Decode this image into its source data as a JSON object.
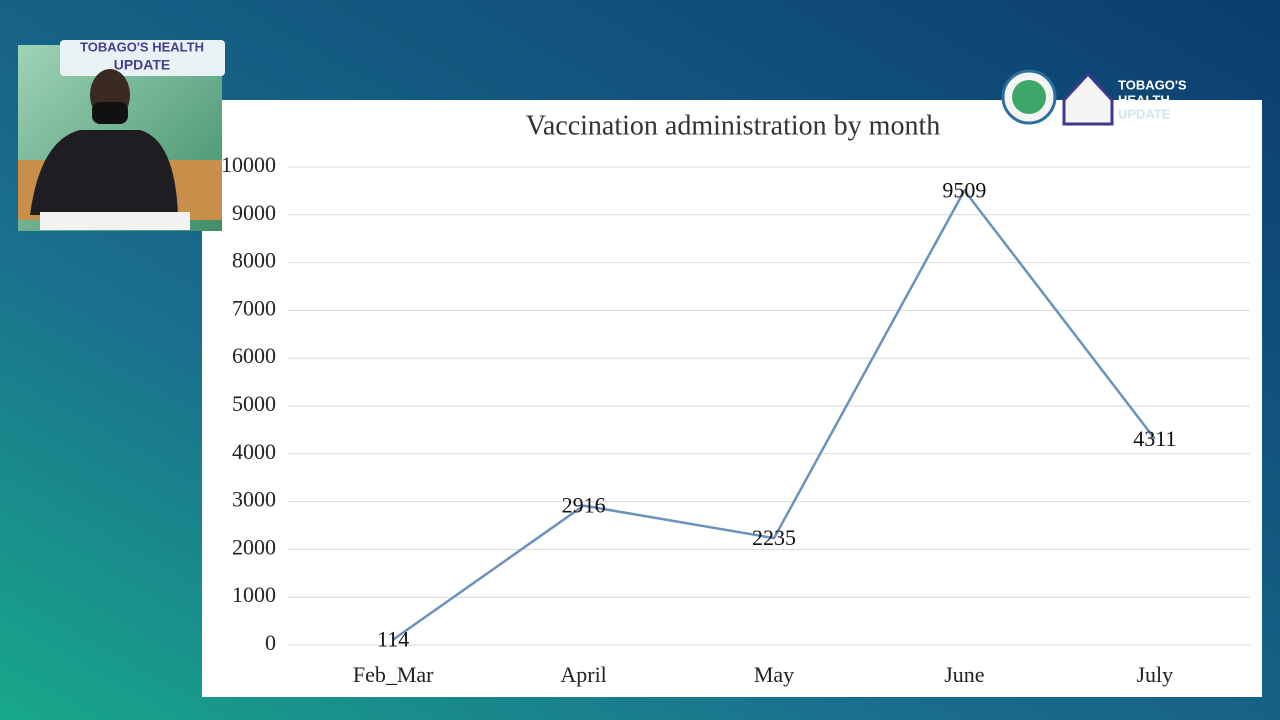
{
  "chart_data": {
    "type": "line",
    "title": "Vaccination administration by month",
    "categories": [
      "Feb_Mar",
      "April",
      "May",
      "June",
      "July"
    ],
    "values": [
      114,
      2916,
      2235,
      9509,
      4311
    ],
    "color": "#6a92bb",
    "ylim": [
      0,
      10000
    ],
    "yticks": [
      0,
      1000,
      2000,
      3000,
      4000,
      5000,
      6000,
      7000,
      8000,
      9000,
      10000
    ],
    "grid": true,
    "data_labels": true
  },
  "branding": {
    "logo_lines": [
      "TOBAGO'S",
      "HEALTH",
      "UPDATE"
    ],
    "inset_banner": [
      "TOBAGO'S HEALTH",
      "UPDATE"
    ]
  }
}
